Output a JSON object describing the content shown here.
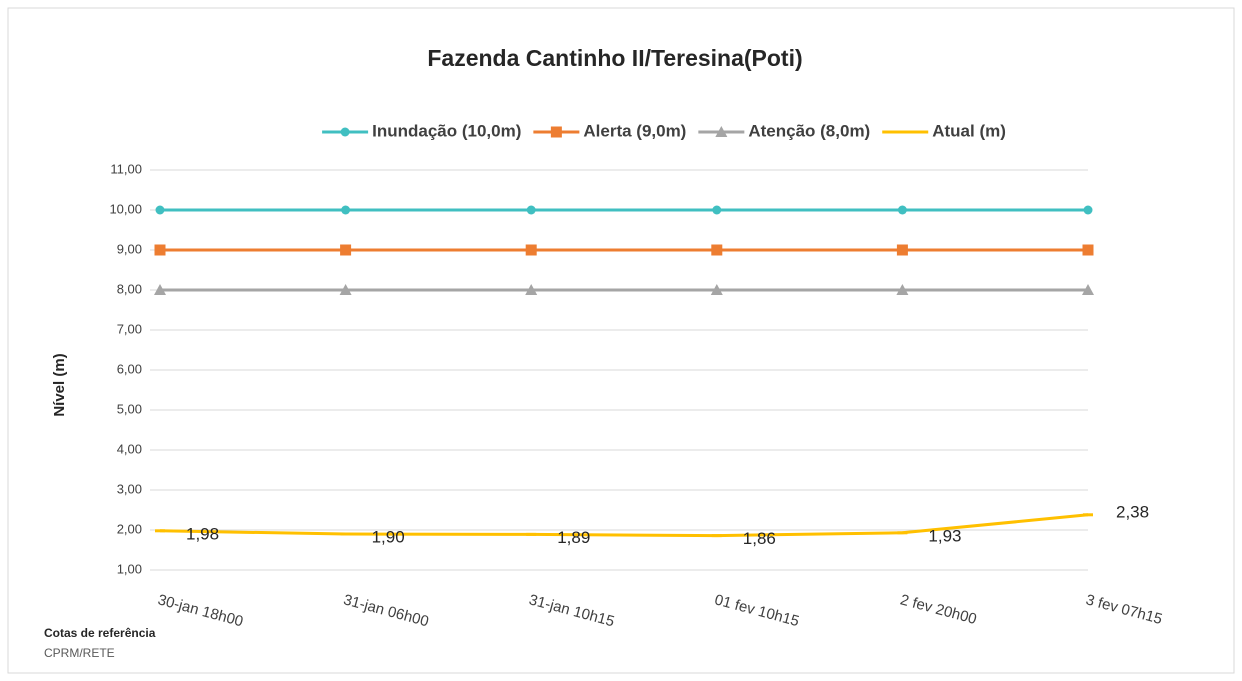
{
  "chart_data": {
    "type": "line",
    "title": "Fazenda Cantinho II/Teresina(Poti)",
    "y_label": "Nível (m)",
    "annotations": [
      "Cotas de referência",
      "CPRM/RETE"
    ],
    "categories": [
      "30-jan 18h00",
      "31-jan 06h00",
      "31-jan 10h15",
      "01 fev 10h15",
      "2 fev 20h00",
      "3 fev 07h15"
    ],
    "series": [
      {
        "name": "Inundação (10,0m)",
        "color": "#40bfc1",
        "marker": "circle",
        "values": [
          10,
          10,
          10,
          10,
          10,
          10
        ]
      },
      {
        "name": "Alerta (9,0m)",
        "color": "#ed7d31",
        "marker": "square",
        "values": [
          9,
          9,
          9,
          9,
          9,
          9
        ]
      },
      {
        "name": "Atenção (8,0m)",
        "color": "#a5a5a5",
        "marker": "triangle",
        "values": [
          8,
          8,
          8,
          8,
          8,
          8
        ]
      },
      {
        "name": "Atual (m)",
        "color": "#ffc000",
        "marker": "dash",
        "values": [
          1.98,
          1.9,
          1.89,
          1.86,
          1.93,
          2.38
        ],
        "value_labels": [
          "1,98",
          "1,90",
          "1,89",
          "1,86",
          "1,93",
          "2,38"
        ]
      }
    ],
    "ylim": [
      1,
      11
    ],
    "yticks": [
      {
        "value": 1,
        "label": "1,00"
      },
      {
        "value": 2,
        "label": "2,00"
      },
      {
        "value": 3,
        "label": "3,00"
      },
      {
        "value": 4,
        "label": "4,00"
      },
      {
        "value": 5,
        "label": "5,00"
      },
      {
        "value": 6,
        "label": "6,00"
      },
      {
        "value": 7,
        "label": "7,00"
      },
      {
        "value": 8,
        "label": "8,00"
      },
      {
        "value": 9,
        "label": "9,00"
      },
      {
        "value": 10,
        "label": "10,00"
      },
      {
        "value": 11,
        "label": "11,00"
      }
    ],
    "grid": true,
    "legend": "top"
  }
}
